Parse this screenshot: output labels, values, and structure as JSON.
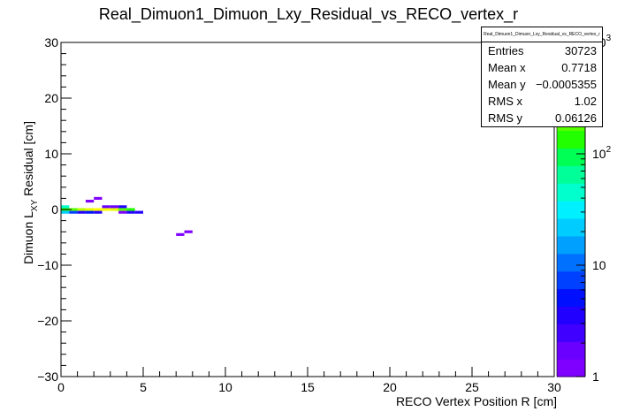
{
  "chart_data": {
    "type": "heatmap",
    "title": "Real_Dimuon1_Dimuon_Lxy_Residual_vs_RECO_vertex_r",
    "xlabel": "RECO Vertex Position R [cm]",
    "ylabel_main": "Dimuon L",
    "ylabel_sub": "XY",
    "ylabel_rest": " Residual [cm]",
    "xlim": [
      0,
      30
    ],
    "ylim": [
      -30,
      30
    ],
    "x_ticks": [
      "0",
      "5",
      "10",
      "15",
      "20",
      "25",
      "30"
    ],
    "y_ticks": [
      "−30",
      "−20",
      "−10",
      "0",
      "10",
      "20",
      "30"
    ],
    "z_scale": "log",
    "z_range": [
      1,
      1000
    ],
    "z_ticks": [
      {
        "base": "1",
        "exp": ""
      },
      {
        "base": "10",
        "exp": ""
      },
      {
        "base": "10",
        "exp": "2"
      },
      {
        "base": "10",
        "exp": "3"
      }
    ],
    "palette": [
      "#7f00ff",
      "#6a00ff",
      "#3f00ff",
      "#2200ff",
      "#0010ff",
      "#0040ff",
      "#0070ff",
      "#00a0ff",
      "#00ccff",
      "#00f0ff",
      "#00ffcc",
      "#00ff99",
      "#00ff55",
      "#22ff00",
      "#55ff00",
      "#88ff00",
      "#bbff00",
      "#e6ff00",
      "#ffff00"
    ],
    "cells": [
      {
        "x": 0.25,
        "y": 0.5,
        "count": 40
      },
      {
        "x": 0.25,
        "y": 0.0,
        "count": 120
      },
      {
        "x": 0.25,
        "y": -0.5,
        "count": 25
      },
      {
        "x": 0.75,
        "y": 0.0,
        "count": 180
      },
      {
        "x": 0.75,
        "y": -0.5,
        "count": 8
      },
      {
        "x": 1.25,
        "y": 0.0,
        "count": 350
      },
      {
        "x": 1.25,
        "y": -0.5,
        "count": 3
      },
      {
        "x": 1.75,
        "y": 0.0,
        "count": 500
      },
      {
        "x": 1.75,
        "y": -0.5,
        "count": 6
      },
      {
        "x": 1.75,
        "y": 1.5,
        "count": 1
      },
      {
        "x": 2.25,
        "y": 0.0,
        "count": 700
      },
      {
        "x": 2.25,
        "y": -0.5,
        "count": 4
      },
      {
        "x": 2.25,
        "y": 2.0,
        "count": 1
      },
      {
        "x": 2.75,
        "y": 0.0,
        "count": 800
      },
      {
        "x": 2.75,
        "y": 0.5,
        "count": 2
      },
      {
        "x": 3.25,
        "y": 0.0,
        "count": 600
      },
      {
        "x": 3.25,
        "y": 0.5,
        "count": 2
      },
      {
        "x": 3.75,
        "y": 0.0,
        "count": 200
      },
      {
        "x": 3.75,
        "y": 0.5,
        "count": 3
      },
      {
        "x": 3.75,
        "y": -0.5,
        "count": 1
      },
      {
        "x": 4.25,
        "y": 0.0,
        "count": 150
      },
      {
        "x": 4.25,
        "y": -0.5,
        "count": 4
      },
      {
        "x": 4.75,
        "y": -0.5,
        "count": 3
      },
      {
        "x": 7.25,
        "y": -4.5,
        "count": 1
      },
      {
        "x": 7.75,
        "y": -4.0,
        "count": 1
      }
    ],
    "stats": {
      "title": "Real_Dimuon1_Dimuon_Lxy_Residual_vs_RECO_vertex_r",
      "rows": [
        {
          "label": "Entries",
          "value": "30723"
        },
        {
          "label": "Mean x",
          "value": "0.7718"
        },
        {
          "label": "Mean y",
          "value": "−0.0005355"
        },
        {
          "label": "RMS x",
          "value": "1.02"
        },
        {
          "label": "RMS y",
          "value": "0.06126"
        }
      ]
    }
  }
}
